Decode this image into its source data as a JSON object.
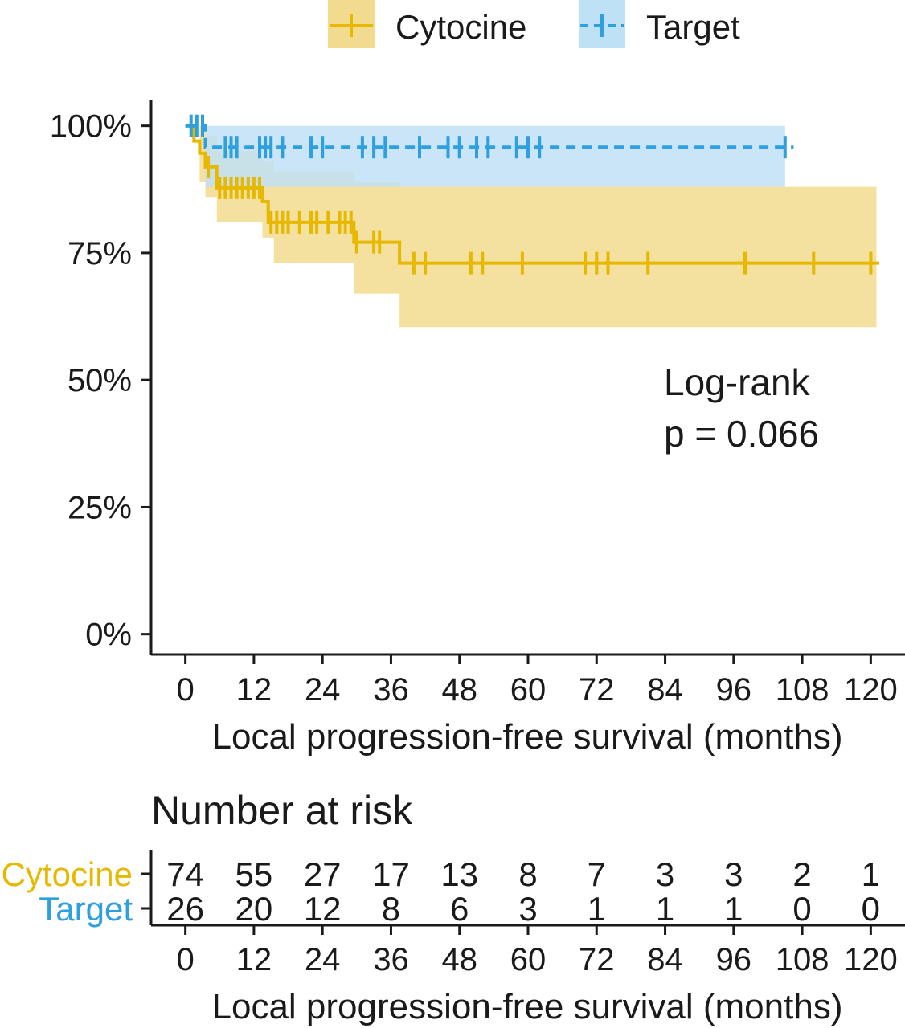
{
  "chart_data": {
    "type": "line",
    "subtype": "kaplan-meier",
    "xlabel": "Local progression-free survival (months)",
    "x_ticks": [
      0,
      12,
      24,
      36,
      48,
      60,
      72,
      84,
      96,
      108,
      120
    ],
    "xlim": [
      -6,
      126
    ],
    "y_ticks": [
      0,
      0.25,
      0.5,
      0.75,
      1.0
    ],
    "y_tick_labels": [
      "0%",
      "25%",
      "50%",
      "75%",
      "100%"
    ],
    "ylim": [
      -0.04,
      1.05
    ],
    "grid": false,
    "legend": {
      "position": "top",
      "entries": [
        "Cytocine",
        "Target"
      ]
    },
    "annotation": {
      "line1": "Log-rank",
      "line2": "p = 0.066"
    },
    "series": [
      {
        "name": "Cytocine",
        "color": "#E7B800",
        "ci_color": "#F2DB8E",
        "line_style": "solid",
        "steps": [
          [
            0,
            1.0
          ],
          [
            1.5,
            0.97
          ],
          [
            2.5,
            0.946
          ],
          [
            3.5,
            0.919
          ],
          [
            5.5,
            0.878
          ],
          [
            13.5,
            0.851
          ],
          [
            14.5,
            0.81
          ],
          [
            29.5,
            0.771
          ],
          [
            37.5,
            0.73
          ],
          [
            121.5,
            0.73
          ]
        ],
        "ci_bands": [
          [
            0,
            1.0,
            1.0
          ],
          [
            2.5,
            0.89,
            1.0
          ],
          [
            3.5,
            0.86,
            0.98
          ],
          [
            5.5,
            0.81,
            0.95
          ],
          [
            13.5,
            0.78,
            0.93
          ],
          [
            15.5,
            0.73,
            0.91
          ],
          [
            29.5,
            0.67,
            0.89
          ],
          [
            37.5,
            0.604,
            0.88
          ],
          [
            121,
            0.604,
            0.88
          ]
        ],
        "censor_times": [
          4,
          6,
          7,
          8,
          9,
          10,
          11,
          12,
          13,
          15,
          16,
          17,
          18,
          20,
          22,
          23,
          25,
          27,
          28,
          29,
          30,
          33,
          34,
          40,
          42,
          50,
          52,
          59,
          70,
          72,
          74,
          81,
          98,
          110,
          120
        ]
      },
      {
        "name": "Target",
        "color": "#2E9FDF",
        "ci_color": "#BFE1F6",
        "line_style": "dashed",
        "steps": [
          [
            0,
            1.0
          ],
          [
            3.5,
            0.958
          ],
          [
            106.5,
            0.958
          ]
        ],
        "ci_bands": [
          [
            0,
            1.0,
            1.0
          ],
          [
            3.5,
            0.88,
            1.0
          ],
          [
            105,
            0.88,
            1.0
          ]
        ],
        "censor_times": [
          1,
          2,
          3,
          7,
          8,
          9,
          13,
          14,
          15,
          17,
          22,
          24,
          31,
          33,
          35,
          41,
          46,
          48,
          51,
          53,
          58,
          60,
          62,
          105
        ]
      }
    ],
    "risk_table": {
      "title": "Number at risk",
      "xlabel": "Local progression-free survival (months)",
      "times": [
        0,
        12,
        24,
        36,
        48,
        60,
        72,
        84,
        96,
        108,
        120
      ],
      "rows": [
        {
          "name": "Cytocine",
          "color": "#E7B800",
          "values": [
            74,
            55,
            27,
            17,
            13,
            8,
            7,
            3,
            3,
            2,
            1
          ]
        },
        {
          "name": "Target",
          "color": "#2E9FDF",
          "values": [
            26,
            20,
            12,
            8,
            6,
            3,
            1,
            1,
            1,
            0,
            0
          ]
        }
      ]
    }
  }
}
